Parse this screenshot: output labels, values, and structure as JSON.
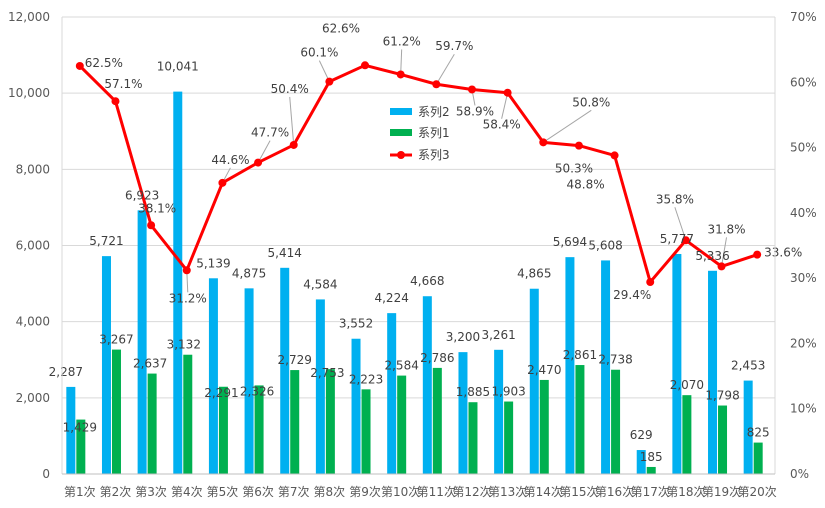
{
  "chart_data": {
    "type": "bar-line-combo",
    "categories": [
      "第1次",
      "第2次",
      "第3次",
      "第4次",
      "第5次",
      "第6次",
      "第7次",
      "第8次",
      "第9次",
      "第10次",
      "第11次",
      "第12次",
      "第13次",
      "第14次",
      "第15次",
      "第16次",
      "第17次",
      "第18次",
      "第19次",
      "第20次"
    ],
    "series": [
      {
        "name": "系列2",
        "type": "bar",
        "axis": "left",
        "color": "#00B0F0",
        "values": [
          2287,
          5721,
          6923,
          10041,
          5139,
          4875,
          5414,
          4584,
          3552,
          4224,
          4668,
          3200,
          3261,
          4865,
          5694,
          5608,
          629,
          5777,
          5336,
          2453
        ],
        "labels": [
          "2,287",
          "5,721",
          "6,923",
          "10,041",
          "5,139",
          "4,875",
          "5,414",
          "4,584",
          "3,552",
          "4,224",
          "4,668",
          "3,200",
          "3,261",
          "4,865",
          "5,694",
          "5,608",
          "629",
          "5,777",
          "5,336",
          "2,453"
        ]
      },
      {
        "name": "系列1",
        "type": "bar",
        "axis": "left",
        "color": "#00B050",
        "values": [
          1429,
          3267,
          2637,
          3132,
          2291,
          2326,
          2729,
          2753,
          2223,
          2584,
          2786,
          1885,
          1903,
          2470,
          2861,
          2738,
          185,
          2070,
          1798,
          825
        ],
        "labels": [
          "1,429",
          "3,267",
          "2,637",
          "3,132",
          "2,291",
          "2,326",
          "2,729",
          "2,753",
          "2,223",
          "2,584",
          "2,786",
          "1,885",
          "1,903",
          "2,470",
          "2,861",
          "2,738",
          "185",
          "2,070",
          "1,798",
          "825"
        ]
      },
      {
        "name": "系列3",
        "type": "line",
        "axis": "right",
        "color": "#FF0000",
        "values": [
          62.5,
          57.1,
          38.1,
          31.2,
          44.6,
          47.7,
          50.4,
          60.1,
          62.6,
          61.2,
          59.7,
          58.9,
          58.4,
          50.8,
          50.3,
          48.8,
          29.4,
          35.8,
          31.8,
          33.6
        ],
        "labels": [
          "62.5%",
          "57.1%",
          "38.1%",
          "31.2%",
          "44.6%",
          "47.7%",
          "50.4%",
          "60.1%",
          "62.6%",
          "61.2%",
          "59.7%",
          "58.9%",
          "58.4%",
          "50.8%",
          "50.3%",
          "48.8%",
          "29.4%",
          "35.8%",
          "31.8%",
          "33.6%"
        ]
      }
    ],
    "y_left": {
      "min": 0,
      "max": 12000,
      "ticks": [
        "0",
        "2,000",
        "4,000",
        "6,000",
        "8,000",
        "10,000",
        "12,000"
      ]
    },
    "y_right": {
      "min": 0,
      "max": 70,
      "ticks": [
        "0%",
        "10%",
        "20%",
        "30%",
        "40%",
        "50%",
        "60%",
        "70%"
      ]
    },
    "legend": {
      "position": "center-top",
      "entries": [
        "系列2",
        "系列1",
        "系列3"
      ]
    },
    "grid": true,
    "title": "",
    "colors": {
      "grid": "#D9D9D9",
      "axis": "#BFBFBF",
      "leader": "#A6A6A6"
    }
  }
}
